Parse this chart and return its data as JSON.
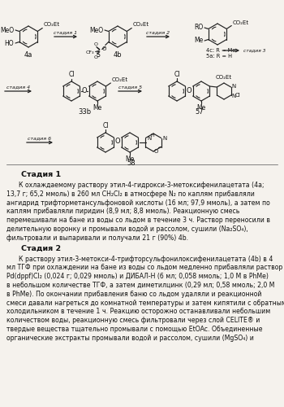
{
  "bg_color": "#f0ede8",
  "text_color": "#1a1a1a",
  "para1_header": "Стадия 1",
  "para1_lines": [
    "      К охлаждаемому раствору этил-4-гидрокси-3-метоксифенилацетата (4а;",
    "13,7 г; 65,2 ммоль) в 260 мл CH₂Cl₂ в атмосфере N₂ по каплям прибавляли",
    "ангидрид трифторметансульфоновой кислоты (16 мл; 97,9 ммоль), а затем по",
    "каплям прибавляли пиридин (8,9 мл; 8,8 ммоль). Реакционную смесь",
    "перемешивали на бане из воды со льдом в течение 3 ч. Раствор переносили в",
    "делительную воронку и промывали водой и рассолом, сушили (Na₂SO₄),",
    "фильтровали и выпаривали и получали 21 г (90%) 4b."
  ],
  "para2_header": "Стадия 2",
  "para2_lines": [
    "      К раствору этил-3-метокси-4-трифторсульфонилоксифенилацетата (4b) в 4",
    "мл ТГФ при охлаждении на бане из воды со льдом медленно прибавляли раствор",
    "Pd(dppf)Cl₂ (0,024 г; 0,029 ммоль) и ДИБАЛ-Н (6 мл; 0,058 ммоль; 1,0 М в PhMe)",
    "в небольшом количестве ТГФ, а затем диметилцинк (0,29 мл; 0,58 ммоль; 2,0 М",
    "в PhMe). По окончании прибавления баню со льдом удаляли и реакционной",
    "смеси давали нагреться до комнатной температуры и затем кипятили с обратным",
    "холодильником в течение 1 ч. Реакцию осторожно останавливали небольшим",
    "количеством воды, реакционную смесь фильтровали через слой CELITE® и",
    "твердые вещества тщательно промывали с помощью EtOAc. Объединенные",
    "органические экстракты промывали водой и рассолом, сушили (MgSO₄) и"
  ]
}
